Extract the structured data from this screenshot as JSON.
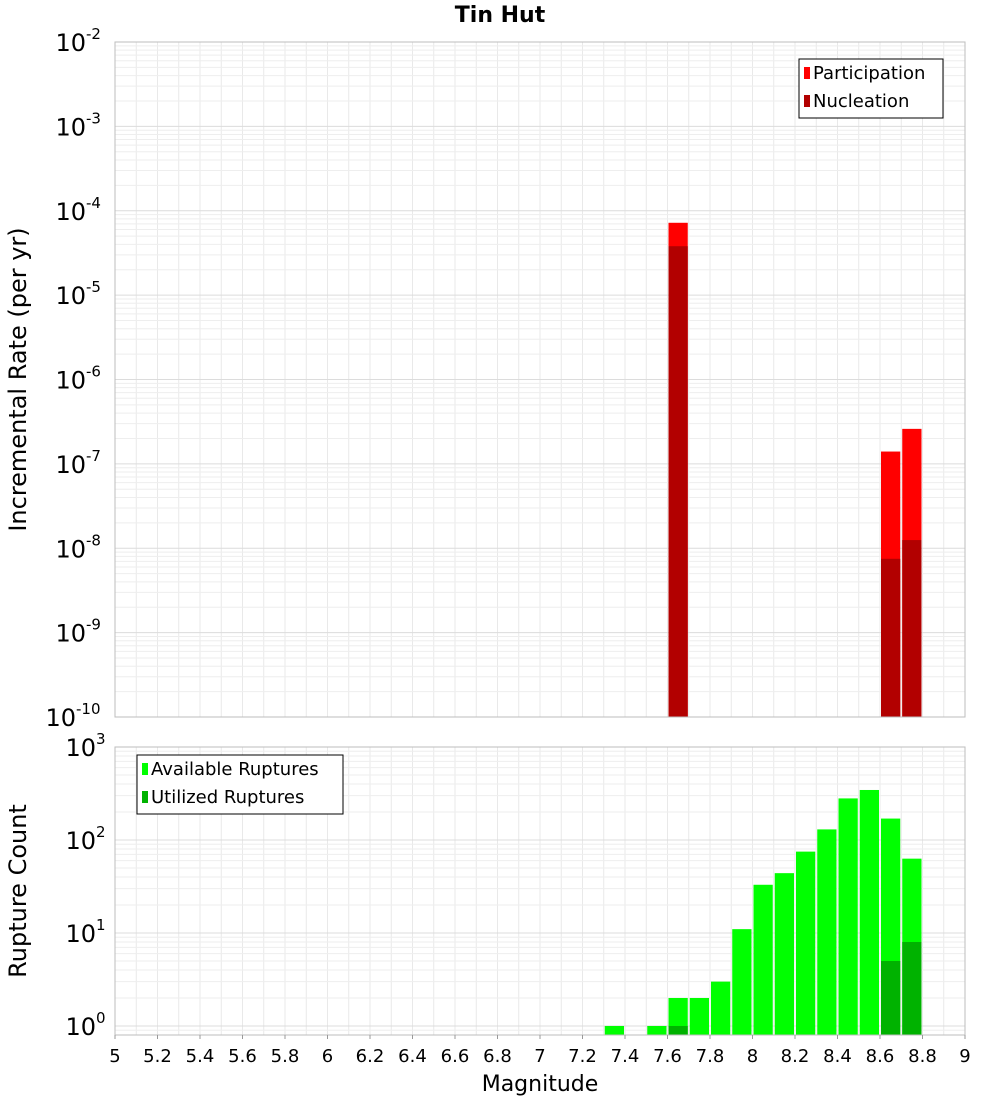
{
  "chart_data": [
    {
      "type": "bar",
      "title": "Tin Hut",
      "xlabel": "",
      "ylabel": "Incremental Rate (per yr)",
      "x_range": [
        5,
        9
      ],
      "y_scale": "log",
      "y_range": [
        1e-10,
        0.01
      ],
      "y_ticks": [
        {
          "base": "10",
          "exp": "-10"
        },
        {
          "base": "10",
          "exp": "-9"
        },
        {
          "base": "10",
          "exp": "-8"
        },
        {
          "base": "10",
          "exp": "-7"
        },
        {
          "base": "10",
          "exp": "-6"
        },
        {
          "base": "10",
          "exp": "-5"
        },
        {
          "base": "10",
          "exp": "-4"
        },
        {
          "base": "10",
          "exp": "-3"
        },
        {
          "base": "10",
          "exp": "-2"
        }
      ],
      "grid": true,
      "legend_position": "top-right",
      "bin_width": 0.1,
      "series": [
        {
          "name": "Participation",
          "color": "#ff0000",
          "points": [
            {
              "x": 7.65,
              "y": 7.2e-05
            },
            {
              "x": 8.65,
              "y": 1.4e-07
            },
            {
              "x": 8.75,
              "y": 2.6e-07
            }
          ]
        },
        {
          "name": "Nucleation",
          "color": "#b20000",
          "points": [
            {
              "x": 7.65,
              "y": 3.8e-05
            },
            {
              "x": 8.65,
              "y": 7.5e-09
            },
            {
              "x": 8.75,
              "y": 1.25e-08
            }
          ]
        }
      ]
    },
    {
      "type": "bar",
      "title": "",
      "xlabel": "Magnitude",
      "ylabel": "Rupture Count",
      "x_range": [
        5,
        9
      ],
      "x_ticks": [
        "5",
        "5.2",
        "5.4",
        "5.6",
        "5.8",
        "6",
        "6.2",
        "6.4",
        "6.6",
        "6.8",
        "7",
        "7.2",
        "7.4",
        "7.6",
        "7.8",
        "8",
        "8.2",
        "8.4",
        "8.6",
        "8.8",
        "9"
      ],
      "y_scale": "log",
      "y_range": [
        0.8,
        1000
      ],
      "y_ticks": [
        {
          "base": "10",
          "exp": "0"
        },
        {
          "base": "10",
          "exp": "1"
        },
        {
          "base": "10",
          "exp": "2"
        },
        {
          "base": "10",
          "exp": "3"
        }
      ],
      "grid": true,
      "legend_position": "top-left",
      "bin_width": 0.1,
      "series": [
        {
          "name": "Available Ruptures",
          "color": "#00ff00",
          "points": [
            {
              "x": 7.35,
              "y": 1
            },
            {
              "x": 7.55,
              "y": 1
            },
            {
              "x": 7.65,
              "y": 2
            },
            {
              "x": 7.75,
              "y": 2
            },
            {
              "x": 7.85,
              "y": 3
            },
            {
              "x": 7.95,
              "y": 11
            },
            {
              "x": 8.05,
              "y": 33
            },
            {
              "x": 8.15,
              "y": 44
            },
            {
              "x": 8.25,
              "y": 75
            },
            {
              "x": 8.35,
              "y": 130
            },
            {
              "x": 8.45,
              "y": 280
            },
            {
              "x": 8.55,
              "y": 345
            },
            {
              "x": 8.65,
              "y": 170
            },
            {
              "x": 8.75,
              "y": 63
            }
          ]
        },
        {
          "name": "Utilized Ruptures",
          "color": "#00b200",
          "points": [
            {
              "x": 7.65,
              "y": 1
            },
            {
              "x": 8.65,
              "y": 5
            },
            {
              "x": 8.75,
              "y": 8
            }
          ]
        }
      ]
    }
  ]
}
